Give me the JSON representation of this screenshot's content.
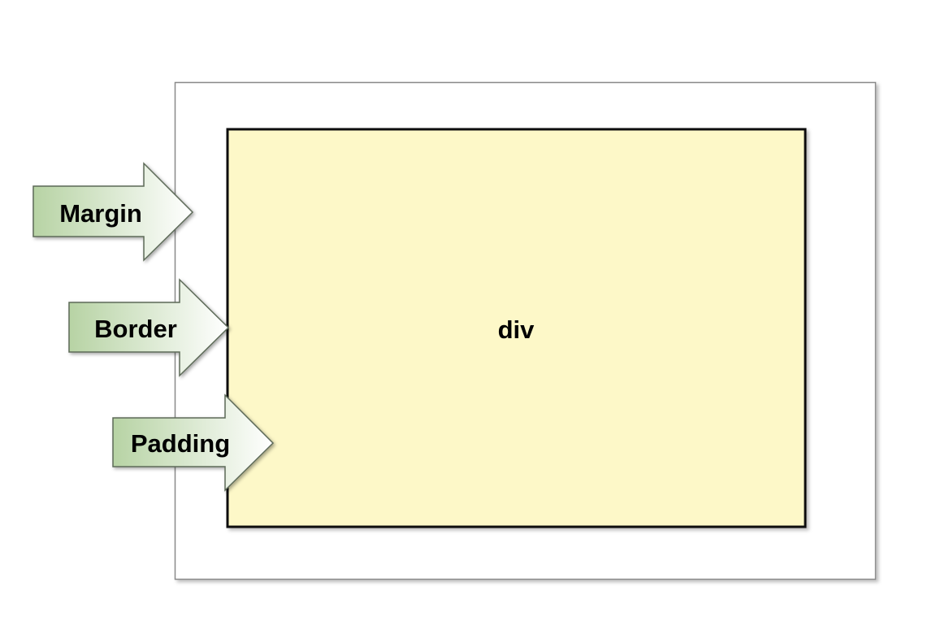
{
  "diagram": {
    "box_label": "div",
    "arrows": {
      "margin": "Margin",
      "border": "Border",
      "padding": "Padding"
    }
  },
  "colors": {
    "outer_box_border": "#8a8a8a",
    "inner_box_fill": "#fdf8c8",
    "inner_box_border": "#111111",
    "arrow_gradient_start": "#b7d3a4",
    "arrow_gradient_end": "#ffffff",
    "arrow_stroke": "#5d6b58"
  }
}
